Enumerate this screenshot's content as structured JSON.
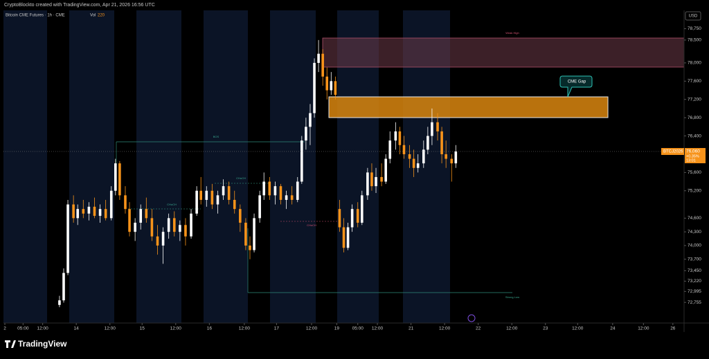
{
  "header": "CryptoBlockto created with TradingView.com, Apr 21, 2026 16:56 UTC",
  "footer": "TradingView",
  "chart_data": {
    "type": "candlestick",
    "title": "Bitcoin CME Futures · 1h · CME",
    "volume_label": "Vol",
    "volume_value": "220",
    "currency": "USD",
    "annotations": {
      "zone_label": "CME Gap",
      "weak_high": "Weak High",
      "strong_low": "Strong Low",
      "bos": "BOS",
      "choch": "CHoCH"
    },
    "last_price": {
      "symbol": "BTCJ2026",
      "value_label": "76,060",
      "change": "+0.35%",
      "countdown": "13:01"
    },
    "up_color": "#ffffff",
    "down_color": "#f7931a",
    "xlim": [
      0,
      243
    ],
    "ylim": [
      72303,
      79150
    ],
    "xticks": [
      {
        "value": 0.5,
        "label": "2"
      },
      {
        "value": 7,
        "label": "05:00"
      },
      {
        "value": 14,
        "label": "12:00"
      },
      {
        "value": 26,
        "label": "14"
      },
      {
        "value": 38,
        "label": "12:00"
      },
      {
        "value": 49.5,
        "label": "15"
      },
      {
        "value": 61.5,
        "label": "12:00"
      },
      {
        "value": 73.5,
        "label": "16"
      },
      {
        "value": 86,
        "label": "12:00"
      },
      {
        "value": 97.5,
        "label": "17"
      },
      {
        "value": 110,
        "label": "12:00"
      },
      {
        "value": 119,
        "label": "19"
      },
      {
        "value": 126.5,
        "label": "05:00"
      },
      {
        "value": 133.5,
        "label": "12:00"
      },
      {
        "value": 145.5,
        "label": "21"
      },
      {
        "value": 157.5,
        "label": "12:00"
      },
      {
        "value": 169.5,
        "label": "22"
      },
      {
        "value": 181.5,
        "label": "12:00"
      },
      {
        "value": 193.5,
        "label": "23"
      },
      {
        "value": 205,
        "label": "12:00"
      },
      {
        "value": 217.5,
        "label": "24"
      },
      {
        "value": 228.5,
        "label": "12:00"
      },
      {
        "value": 239,
        "label": "26"
      }
    ],
    "yticks": [
      {
        "value": 78750,
        "label": "78,750"
      },
      {
        "value": 78500,
        "label": "78,500"
      },
      {
        "value": 78000,
        "label": "78,000"
      },
      {
        "value": 77600,
        "label": "77,600"
      },
      {
        "value": 77200,
        "label": "77,200"
      },
      {
        "value": 76800,
        "label": "76,800"
      },
      {
        "value": 76400,
        "label": "76,400"
      },
      {
        "value": 75600,
        "label": "75,600"
      },
      {
        "value": 75200,
        "label": "75,200"
      },
      {
        "value": 74600,
        "label": "74,600"
      },
      {
        "value": 74300,
        "label": "74,300"
      },
      {
        "value": 74000,
        "label": "74,000"
      },
      {
        "value": 73700,
        "label": "73,700"
      },
      {
        "value": 73450,
        "label": "73,450"
      },
      {
        "value": 73220,
        "label": "73,220"
      },
      {
        "value": 72995,
        "label": "72,995"
      },
      {
        "value": 72755,
        "label": "72,755"
      }
    ],
    "series": [
      {
        "name": "BTCJ2026",
        "x": [
          20,
          21.5,
          23,
          25,
          26.5,
          28.5,
          30.5,
          32.5,
          34.5,
          36.5,
          38.5,
          40,
          41.5,
          43.5,
          45,
          47,
          49,
          51,
          53,
          55,
          57,
          59,
          61,
          63,
          65,
          67,
          69,
          70.5,
          72.5,
          74.5,
          76.5,
          78.5,
          80.5,
          82.5,
          84.5,
          86.5,
          88,
          89.5,
          91.5,
          93,
          95,
          97,
          99,
          101,
          103,
          105,
          106.5,
          108,
          109.5,
          111,
          112.5,
          114,
          115.5,
          117,
          118.5,
          120,
          121.5,
          123,
          124.5,
          126.5,
          128,
          130,
          131.5,
          133,
          135,
          136.5,
          138,
          140,
          141.5,
          143,
          145,
          146.5,
          148,
          150,
          151.5,
          153,
          155,
          156.5,
          158,
          160,
          161.5
        ],
        "open": [
          72700,
          72800,
          73400,
          74900,
          74600,
          74800,
          74700,
          74850,
          74650,
          74800,
          74600,
          75200,
          75800,
          75100,
          74800,
          74300,
          74500,
          74800,
          74600,
          74200,
          74000,
          74300,
          74600,
          74300,
          74450,
          74200,
          74700,
          75200,
          75000,
          75200,
          74900,
          75100,
          75300,
          75000,
          74800,
          74500,
          74000,
          73900,
          74600,
          75100,
          75400,
          75100,
          75300,
          75000,
          75100,
          75000,
          75400,
          76300,
          76600,
          76900,
          78000,
          78200,
          77700,
          77400,
          77600,
          74800,
          74400,
          73950,
          74400,
          74800,
          74500,
          75100,
          75600,
          75300,
          75500,
          75400,
          75900,
          76300,
          76500,
          76200,
          76000,
          75900,
          75700,
          75800,
          76100,
          76400,
          76700,
          76500,
          76000,
          75900,
          75800
        ],
        "high": [
          72900,
          73500,
          75000,
          75100,
          74900,
          75000,
          74950,
          75050,
          74900,
          75000,
          75300,
          75900,
          75850,
          75300,
          74950,
          74600,
          74900,
          75050,
          74800,
          74450,
          74400,
          74700,
          74750,
          74550,
          74600,
          74800,
          75300,
          75500,
          75300,
          75350,
          75200,
          75450,
          75400,
          75200,
          74900,
          74600,
          74200,
          74700,
          75200,
          75600,
          75500,
          75400,
          75350,
          75200,
          75300,
          75500,
          76400,
          76800,
          77100,
          78100,
          78500,
          78300,
          77900,
          77800,
          77700,
          75000,
          74600,
          74500,
          74900,
          74950,
          75200,
          75700,
          75800,
          75700,
          75800,
          76000,
          76500,
          76700,
          76600,
          76400,
          76200,
          76100,
          76000,
          76300,
          76600,
          77000,
          76900,
          76600,
          76300,
          76000,
          76200
        ],
        "low": [
          72650,
          72750,
          73350,
          74500,
          74450,
          74600,
          74550,
          74600,
          74500,
          74550,
          74550,
          75100,
          75000,
          74700,
          74200,
          74100,
          74350,
          74500,
          74100,
          73800,
          73600,
          74150,
          74200,
          74100,
          74000,
          74150,
          74650,
          74900,
          74850,
          74800,
          74700,
          75000,
          74900,
          74700,
          74300,
          73900,
          73700,
          73850,
          74500,
          75000,
          75000,
          74900,
          74900,
          74800,
          74900,
          74950,
          75350,
          76100,
          76200,
          76800,
          77800,
          77500,
          77200,
          77300,
          77200,
          74300,
          73850,
          73900,
          74300,
          74400,
          74450,
          75000,
          75200,
          75150,
          75300,
          75350,
          75800,
          76100,
          76000,
          75900,
          75700,
          75500,
          75600,
          75700,
          76000,
          76200,
          76300,
          75800,
          75700,
          75400,
          75700
        ],
        "close": [
          72800,
          73400,
          74900,
          74600,
          74800,
          74700,
          74850,
          74650,
          74800,
          74600,
          75200,
          75800,
          75100,
          74800,
          74300,
          74500,
          74800,
          74600,
          74200,
          74000,
          74300,
          74600,
          74300,
          74450,
          74200,
          74700,
          75200,
          75000,
          75200,
          74900,
          75100,
          75300,
          75000,
          74800,
          74500,
          74000,
          73900,
          74600,
          75100,
          75400,
          75100,
          75300,
          75000,
          75100,
          75000,
          75400,
          76300,
          76600,
          76900,
          78000,
          78200,
          77700,
          77400,
          77600,
          77300,
          74400,
          73950,
          74400,
          74800,
          74500,
          75100,
          75600,
          75300,
          75500,
          75400,
          75900,
          76300,
          76500,
          76200,
          76000,
          75900,
          75700,
          75800,
          76100,
          76400,
          76700,
          76500,
          76000,
          75900,
          75800,
          76060
        ]
      }
    ]
  }
}
